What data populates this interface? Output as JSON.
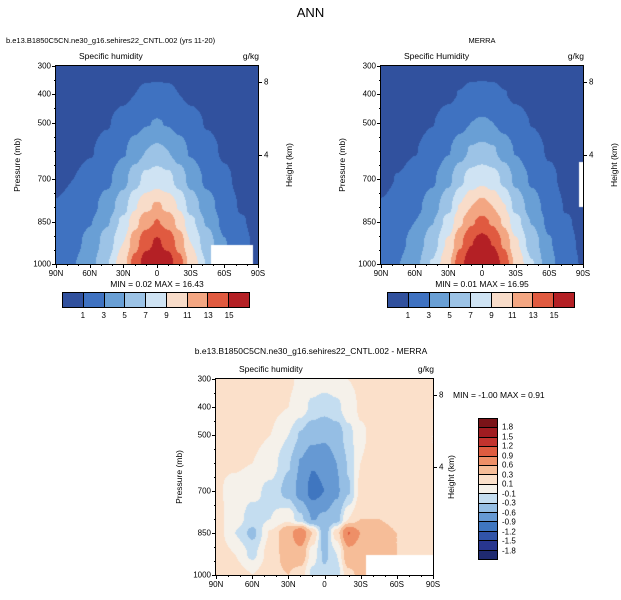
{
  "page": {
    "title": "ANN"
  },
  "chart_data": [
    {
      "id": "model",
      "type": "heatmap",
      "title": "b.e13.B1850C5CN.ne30_g16.sehires22_CNTL.002 (yrs 11-20)",
      "field_label": "Specific humidity",
      "units": "g/kg",
      "ylabel": "Pressure (mb)",
      "right_axis_label": "Height (km)",
      "stats": "MIN =  0.02  MAX =  16.43",
      "min": 0.02,
      "max": 16.43,
      "colorbar": "horizontal",
      "y_range": [
        300,
        1000
      ],
      "y_ticks": [
        300,
        400,
        500,
        700,
        850,
        1000
      ],
      "x_ticks": [
        {
          "label": "90N",
          "lat": 90
        },
        {
          "label": "60N",
          "lat": 60
        },
        {
          "label": "30N",
          "lat": 30
        },
        {
          "label": "0",
          "lat": 0
        },
        {
          "label": "30S",
          "lat": -30
        },
        {
          "label": "60S",
          "lat": -60
        },
        {
          "label": "90S",
          "lat": -90
        }
      ],
      "height_ticks": [
        {
          "label": "8",
          "p": 356
        },
        {
          "label": "4",
          "p": 616
        }
      ],
      "levels": [
        1,
        3,
        5,
        7,
        9,
        11,
        13,
        15
      ],
      "colors": [
        "#31519e",
        "#3f72c1",
        "#699fd5",
        "#9cc3e6",
        "#cfe3f3",
        "#f8dcc9",
        "#f3a682",
        "#e05a40",
        "#b42025"
      ],
      "lat": [
        90,
        75,
        60,
        45,
        30,
        20,
        10,
        0,
        -10,
        -20,
        -30,
        -45,
        -60,
        -75,
        -90
      ],
      "pressure": [
        300,
        400,
        500,
        600,
        700,
        800,
        850,
        925,
        1000
      ],
      "values": [
        [
          0.05,
          0.07,
          0.1,
          0.15,
          0.25,
          0.35,
          0.45,
          0.5,
          0.45,
          0.35,
          0.25,
          0.15,
          0.08,
          0.05,
          0.04
        ],
        [
          0.1,
          0.15,
          0.25,
          0.4,
          0.7,
          1.0,
          1.3,
          1.4,
          1.3,
          1.0,
          0.7,
          0.4,
          0.2,
          0.1,
          0.08
        ],
        [
          0.2,
          0.3,
          0.5,
          0.9,
          1.6,
          2.3,
          2.9,
          3.1,
          2.9,
          2.3,
          1.6,
          0.9,
          0.4,
          0.2,
          0.15
        ],
        [
          0.4,
          0.6,
          0.9,
          1.6,
          2.8,
          4.0,
          5.0,
          5.4,
          5.0,
          4.0,
          2.8,
          1.6,
          0.8,
          0.4,
          0.25
        ],
        [
          0.7,
          1.0,
          1.5,
          2.6,
          4.4,
          6.2,
          7.6,
          8.2,
          7.6,
          6.2,
          4.4,
          2.6,
          1.3,
          0.6,
          0.4
        ],
        [
          1.1,
          1.5,
          2.3,
          3.9,
          6.3,
          8.8,
          10.6,
          11.3,
          10.6,
          8.8,
          6.3,
          3.9,
          2.0,
          0.9,
          0.6
        ],
        [
          1.4,
          1.9,
          2.9,
          4.8,
          7.5,
          10.3,
          12.3,
          13.1,
          12.3,
          10.3,
          7.5,
          4.8,
          2.5,
          1.1,
          0.7
        ],
        [
          1.8,
          2.4,
          3.6,
          5.9,
          9.0,
          12.2,
          14.4,
          15.3,
          14.4,
          12.2,
          9.0,
          5.9,
          3.1,
          1.3,
          0.8
        ],
        [
          2.2,
          2.9,
          4.3,
          6.9,
          10.4,
          13.8,
          16.0,
          16.43,
          16.0,
          13.8,
          10.4,
          6.9,
          3.6,
          1.5,
          0.9
        ]
      ],
      "masks": [
        {
          "lat0": -86,
          "lat1": -48,
          "p0": 935,
          "p1": 1000
        }
      ]
    },
    {
      "id": "merra",
      "type": "heatmap",
      "title": "MERRA",
      "field_label": "Specific Humidity",
      "units": "g/kg",
      "ylabel": "Pressure (mb)",
      "right_axis_label": "Height (km)",
      "stats": "MIN =  0.01  MAX =  16.95",
      "min": 0.01,
      "max": 16.95,
      "colorbar": "horizontal",
      "y_range": [
        300,
        1000
      ],
      "y_ticks": [
        300,
        400,
        500,
        700,
        850,
        1000
      ],
      "x_ticks": [
        {
          "label": "90N",
          "lat": 90
        },
        {
          "label": "60N",
          "lat": 60
        },
        {
          "label": "30N",
          "lat": 30
        },
        {
          "label": "0",
          "lat": 0
        },
        {
          "label": "30S",
          "lat": -30
        },
        {
          "label": "60S",
          "lat": -60
        },
        {
          "label": "90S",
          "lat": -90
        }
      ],
      "height_ticks": [
        {
          "label": "8",
          "p": 356
        },
        {
          "label": "4",
          "p": 616
        }
      ],
      "levels": [
        1,
        3,
        5,
        7,
        9,
        11,
        13,
        15
      ],
      "colors": [
        "#31519e",
        "#3f72c1",
        "#699fd5",
        "#9cc3e6",
        "#cfe3f3",
        "#f8dcc9",
        "#f3a682",
        "#e05a40",
        "#b42025"
      ],
      "lat": [
        90,
        75,
        60,
        45,
        30,
        20,
        10,
        0,
        -10,
        -20,
        -30,
        -45,
        -60,
        -75,
        -90
      ],
      "pressure": [
        300,
        400,
        500,
        600,
        700,
        800,
        850,
        925,
        1000
      ],
      "values": [
        [
          0.05,
          0.07,
          0.1,
          0.16,
          0.27,
          0.38,
          0.48,
          0.52,
          0.48,
          0.38,
          0.27,
          0.16,
          0.09,
          0.05,
          0.04
        ],
        [
          0.1,
          0.16,
          0.27,
          0.42,
          0.75,
          1.05,
          1.35,
          1.45,
          1.35,
          1.05,
          0.75,
          0.42,
          0.22,
          0.11,
          0.08
        ],
        [
          0.22,
          0.32,
          0.55,
          0.95,
          1.7,
          2.4,
          3.0,
          3.2,
          3.0,
          2.4,
          1.7,
          0.95,
          0.45,
          0.22,
          0.16
        ],
        [
          0.42,
          0.62,
          0.95,
          1.7,
          2.9,
          4.2,
          5.2,
          5.6,
          5.2,
          4.2,
          2.9,
          1.7,
          0.85,
          0.42,
          0.26
        ],
        [
          0.72,
          1.05,
          1.6,
          2.7,
          4.6,
          6.5,
          8.0,
          8.6,
          8.0,
          6.5,
          4.6,
          2.7,
          1.35,
          0.62,
          0.42
        ],
        [
          1.1,
          1.55,
          2.4,
          4.0,
          6.5,
          9.1,
          11.0,
          11.8,
          11.0,
          9.1,
          6.5,
          4.0,
          2.05,
          0.92,
          0.62
        ],
        [
          1.4,
          1.95,
          3.0,
          4.9,
          7.7,
          10.6,
          12.7,
          13.6,
          12.7,
          10.6,
          7.7,
          4.9,
          2.55,
          1.12,
          0.72
        ],
        [
          1.8,
          2.45,
          3.7,
          6.0,
          9.3,
          12.6,
          14.9,
          15.9,
          14.9,
          12.6,
          9.3,
          6.0,
          3.15,
          1.32,
          0.82
        ],
        [
          2.2,
          2.95,
          4.4,
          7.1,
          10.7,
          14.2,
          16.5,
          16.95,
          16.5,
          14.2,
          10.7,
          7.1,
          3.65,
          1.52,
          0.92
        ]
      ],
      "masks": [
        {
          "lat0": -90,
          "lat1": -87,
          "p0": 640,
          "p1": 800
        }
      ]
    },
    {
      "id": "diff",
      "type": "heatmap",
      "title": "b.e13.B1850C5CN.ne30_g16.sehires22_CNTL.002 - MERRA",
      "field_label": "Specific humidity",
      "units": "g/kg",
      "ylabel": "Pressure (mb)",
      "right_axis_label": "Height (km)",
      "stats": "MIN = -1.00  MAX =  0.91",
      "min": -1.0,
      "max": 0.91,
      "colorbar": "vertical",
      "y_range": [
        300,
        1000
      ],
      "y_ticks": [
        300,
        400,
        500,
        700,
        850,
        1000
      ],
      "x_ticks": [
        {
          "label": "90N",
          "lat": 90
        },
        {
          "label": "60N",
          "lat": 60
        },
        {
          "label": "30N",
          "lat": 30
        },
        {
          "label": "0",
          "lat": 0
        },
        {
          "label": "30S",
          "lat": -30
        },
        {
          "label": "60S",
          "lat": -60
        },
        {
          "label": "90S",
          "lat": -90
        }
      ],
      "height_ticks": [
        {
          "label": "8",
          "p": 356
        },
        {
          "label": "4",
          "p": 616
        }
      ],
      "levels": [
        -1.8,
        -1.5,
        -1.2,
        -0.9,
        -0.6,
        -0.3,
        -0.1,
        0.1,
        0.3,
        0.6,
        0.9,
        1.2,
        1.5,
        1.8
      ],
      "colors": [
        "#1f2a70",
        "#28368f",
        "#3154a8",
        "#3f76c0",
        "#6699d3",
        "#95bee4",
        "#c4ddf0",
        "#f5f1ea",
        "#fbe0ca",
        "#f6bd98",
        "#ee8f67",
        "#de5c40",
        "#c2332e",
        "#a01c21",
        "#7a1318"
      ],
      "lat": [
        90,
        75,
        60,
        45,
        30,
        20,
        10,
        0,
        -10,
        -20,
        -30,
        -45,
        -60,
        -75,
        -90
      ],
      "pressure": [
        300,
        400,
        500,
        600,
        700,
        800,
        850,
        925,
        1000
      ],
      "values": [
        [
          0.12,
          0.12,
          0.13,
          0.14,
          0.12,
          0.08,
          0.03,
          0.0,
          0.03,
          0.1,
          0.13,
          0.14,
          0.13,
          0.12,
          0.12
        ],
        [
          0.12,
          0.13,
          0.14,
          0.14,
          0.1,
          0.0,
          -0.15,
          -0.22,
          -0.15,
          0.02,
          0.12,
          0.14,
          0.13,
          0.12,
          0.1
        ],
        [
          0.12,
          0.13,
          0.14,
          0.1,
          -0.1,
          -0.32,
          -0.5,
          -0.55,
          -0.45,
          -0.18,
          0.08,
          0.16,
          0.14,
          0.12,
          0.1
        ],
        [
          0.12,
          0.12,
          0.1,
          0.0,
          -0.28,
          -0.62,
          -0.88,
          -0.82,
          -0.6,
          -0.28,
          0.1,
          0.2,
          0.16,
          0.12,
          0.1
        ],
        [
          0.12,
          0.05,
          -0.05,
          -0.15,
          -0.38,
          -0.72,
          -1.0,
          -0.9,
          -0.65,
          -0.32,
          0.15,
          0.26,
          0.2,
          0.15,
          0.12
        ],
        [
          0.15,
          0.02,
          -0.2,
          -0.1,
          0.05,
          -0.25,
          -0.62,
          -0.55,
          -0.4,
          0.1,
          0.3,
          0.3,
          0.25,
          0.2,
          0.15
        ],
        [
          0.22,
          -0.1,
          -0.35,
          0.12,
          0.5,
          0.85,
          0.3,
          -0.45,
          0.2,
          0.91,
          0.6,
          0.4,
          0.3,
          0.25,
          0.2
        ],
        [
          0.25,
          0.1,
          -0.15,
          0.2,
          0.4,
          0.5,
          0.0,
          -0.35,
          -0.1,
          0.5,
          0.45,
          0.35,
          0.3,
          0.25,
          0.2
        ],
        [
          0.3,
          0.2,
          0.1,
          0.25,
          0.3,
          0.2,
          -0.15,
          -0.25,
          -0.2,
          0.25,
          0.35,
          0.3,
          0.3,
          0.25,
          0.2
        ]
      ],
      "masks": [
        {
          "lat0": -90,
          "lat1": -35,
          "p0": 930,
          "p1": 1000
        }
      ]
    }
  ]
}
